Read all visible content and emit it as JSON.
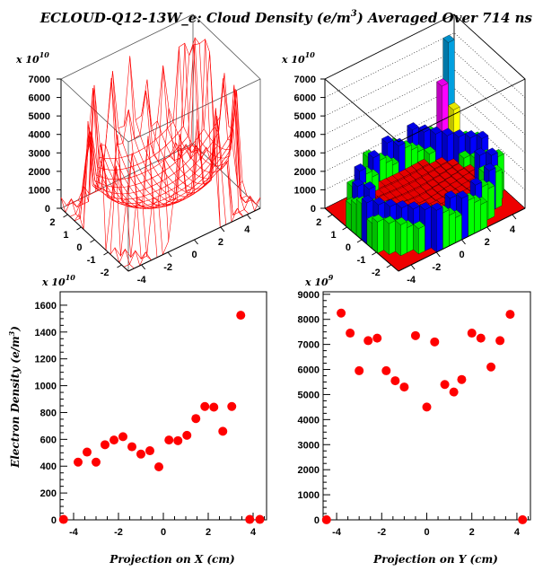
{
  "title": "ECLOUD-Q12-13W_e: Cloud Density (e/m³) Averaged Over 714 ns",
  "chart_data": [
    {
      "type": "surface",
      "panel": "top-left",
      "exponent_label": "x 10^10",
      "z_ticks": [
        "0",
        "1000",
        "2000",
        "3000",
        "4000",
        "5000",
        "6000",
        "7000"
      ],
      "zlim": [
        0,
        7000
      ],
      "x_ticks": [
        "-4",
        "-2",
        "0",
        "2",
        "4"
      ],
      "y_ticks": [
        "-2",
        "-1",
        "0",
        "1",
        "2"
      ],
      "color": "#ff0000"
    },
    {
      "type": "lego",
      "panel": "top-right",
      "exponent_label": "x 10^10",
      "z_ticks": [
        "0",
        "1000",
        "2000",
        "3000",
        "4000",
        "5000",
        "6000",
        "7000"
      ],
      "zlim": [
        0,
        7000
      ],
      "x_ticks": [
        "-4",
        "-2",
        "0",
        "2",
        "4"
      ],
      "y_ticks": [
        "-2",
        "-1",
        "0",
        "1",
        "2"
      ],
      "colors": [
        "#ff0000",
        "#00ff00",
        "#0000ff",
        "#ffff00",
        "#ff00ff",
        "#00a0e0"
      ]
    },
    {
      "type": "scatter",
      "panel": "bottom-left",
      "exponent_label": "x 10^10",
      "xlabel": "Projection on X (cm)",
      "ylabel": "Electron Density (e/m³)",
      "xlim": [
        -4.6,
        4.6
      ],
      "ylim": [
        0,
        1700
      ],
      "x_ticks": [
        -4,
        -2,
        0,
        2,
        4
      ],
      "y_ticks": [
        0,
        200,
        400,
        600,
        800,
        1000,
        1200,
        1400,
        1600
      ],
      "color": "#ff0000",
      "x": [
        -4.45,
        -3.8,
        -3.4,
        -3.0,
        -2.6,
        -2.2,
        -1.8,
        -1.4,
        -1.0,
        -0.6,
        -0.2,
        0.25,
        0.65,
        1.05,
        1.45,
        1.85,
        2.25,
        2.65,
        3.05,
        3.45,
        3.85,
        4.3
      ],
      "y": [
        3,
        430,
        505,
        430,
        560,
        595,
        620,
        545,
        490,
        515,
        395,
        595,
        590,
        630,
        755,
        845,
        840,
        660,
        845,
        1525,
        3,
        3
      ]
    },
    {
      "type": "scatter",
      "panel": "bottom-right",
      "exponent_label": "x 10^9",
      "xlabel": "Projection on Y (cm)",
      "ylabel": "",
      "xlim": [
        -4.6,
        4.6
      ],
      "ylim": [
        0,
        9100
      ],
      "x_ticks": [
        -4,
        -2,
        0,
        2,
        4
      ],
      "y_ticks": [
        0,
        1000,
        2000,
        3000,
        4000,
        5000,
        6000,
        7000,
        8000,
        9000
      ],
      "color": "#ff0000",
      "x": [
        -4.45,
        -3.8,
        -3.4,
        -3.0,
        -2.6,
        -2.2,
        -1.8,
        -1.4,
        -1.0,
        -0.5,
        0.0,
        0.35,
        0.8,
        1.2,
        1.55,
        2.0,
        2.4,
        2.85,
        3.25,
        3.7,
        4.25
      ],
      "y": [
        3,
        8250,
        7450,
        5950,
        7150,
        7250,
        5950,
        5550,
        5300,
        7350,
        4500,
        7100,
        5400,
        5100,
        5600,
        7450,
        7250,
        6100,
        7150,
        8200,
        3
      ]
    }
  ]
}
